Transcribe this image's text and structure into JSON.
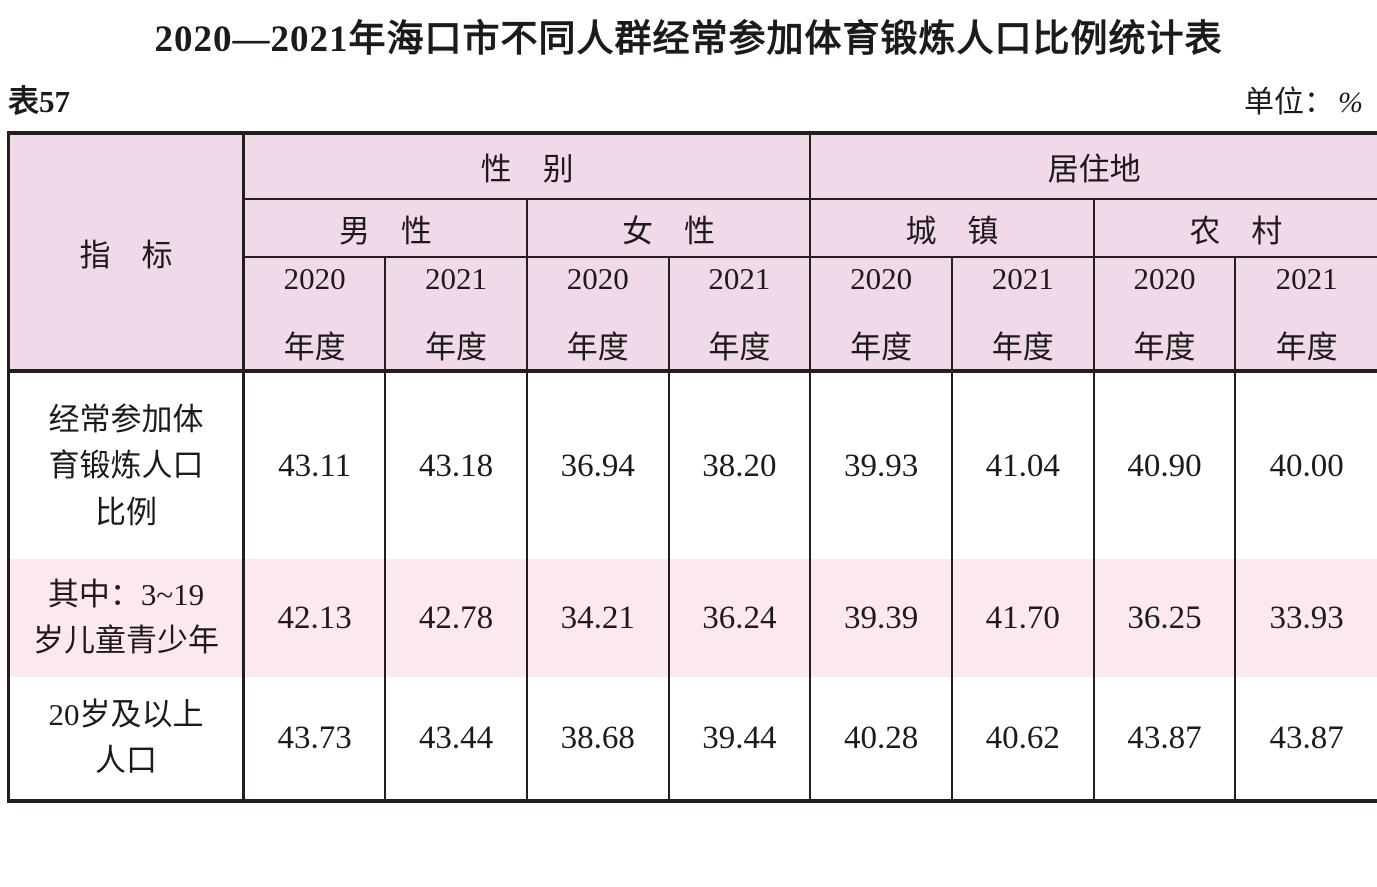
{
  "page": {
    "title": "2020—2021年海口市不同人群经常参加体育锻炼人口比例统计表",
    "table_no": "表57",
    "unit_prefix": "单位：",
    "unit_value": "%"
  },
  "table": {
    "indicator_header": "指　标",
    "group_headers": [
      "性　别",
      "居住地"
    ],
    "subgroup_headers": [
      "男　性",
      "女　性",
      "城　镇",
      "农　村"
    ],
    "year_headers": [
      "2020",
      "2021",
      "2020",
      "2021",
      "2020",
      "2021",
      "2020",
      "2021"
    ],
    "year_suffix": "年度",
    "rows": [
      {
        "label": "经常参加体育锻炼人口比例",
        "label_lines": [
          "经常参加体",
          "育锻炼人口",
          "比例"
        ],
        "values": [
          "43.11",
          "43.18",
          "36.94",
          "38.20",
          "39.93",
          "41.04",
          "40.90",
          "40.00"
        ]
      },
      {
        "label": "其中：3~19岁儿童青少年",
        "label_lines": [
          "其中：3~19",
          "岁儿童青少年"
        ],
        "values": [
          "42.13",
          "42.78",
          "34.21",
          "36.24",
          "39.39",
          "41.70",
          "36.25",
          "33.93"
        ]
      },
      {
        "label": "20岁及以上人口",
        "label_lines": [
          "20岁及以上",
          "人口"
        ],
        "values": [
          "43.73",
          "43.44",
          "38.68",
          "39.44",
          "40.28",
          "40.62",
          "43.87",
          "43.87"
        ]
      }
    ]
  },
  "colors": {
    "header_bg": "#f0daea",
    "shaded_row_bg": "#fce9f0",
    "border": "#241f1f",
    "text": "#1e1a1a"
  }
}
